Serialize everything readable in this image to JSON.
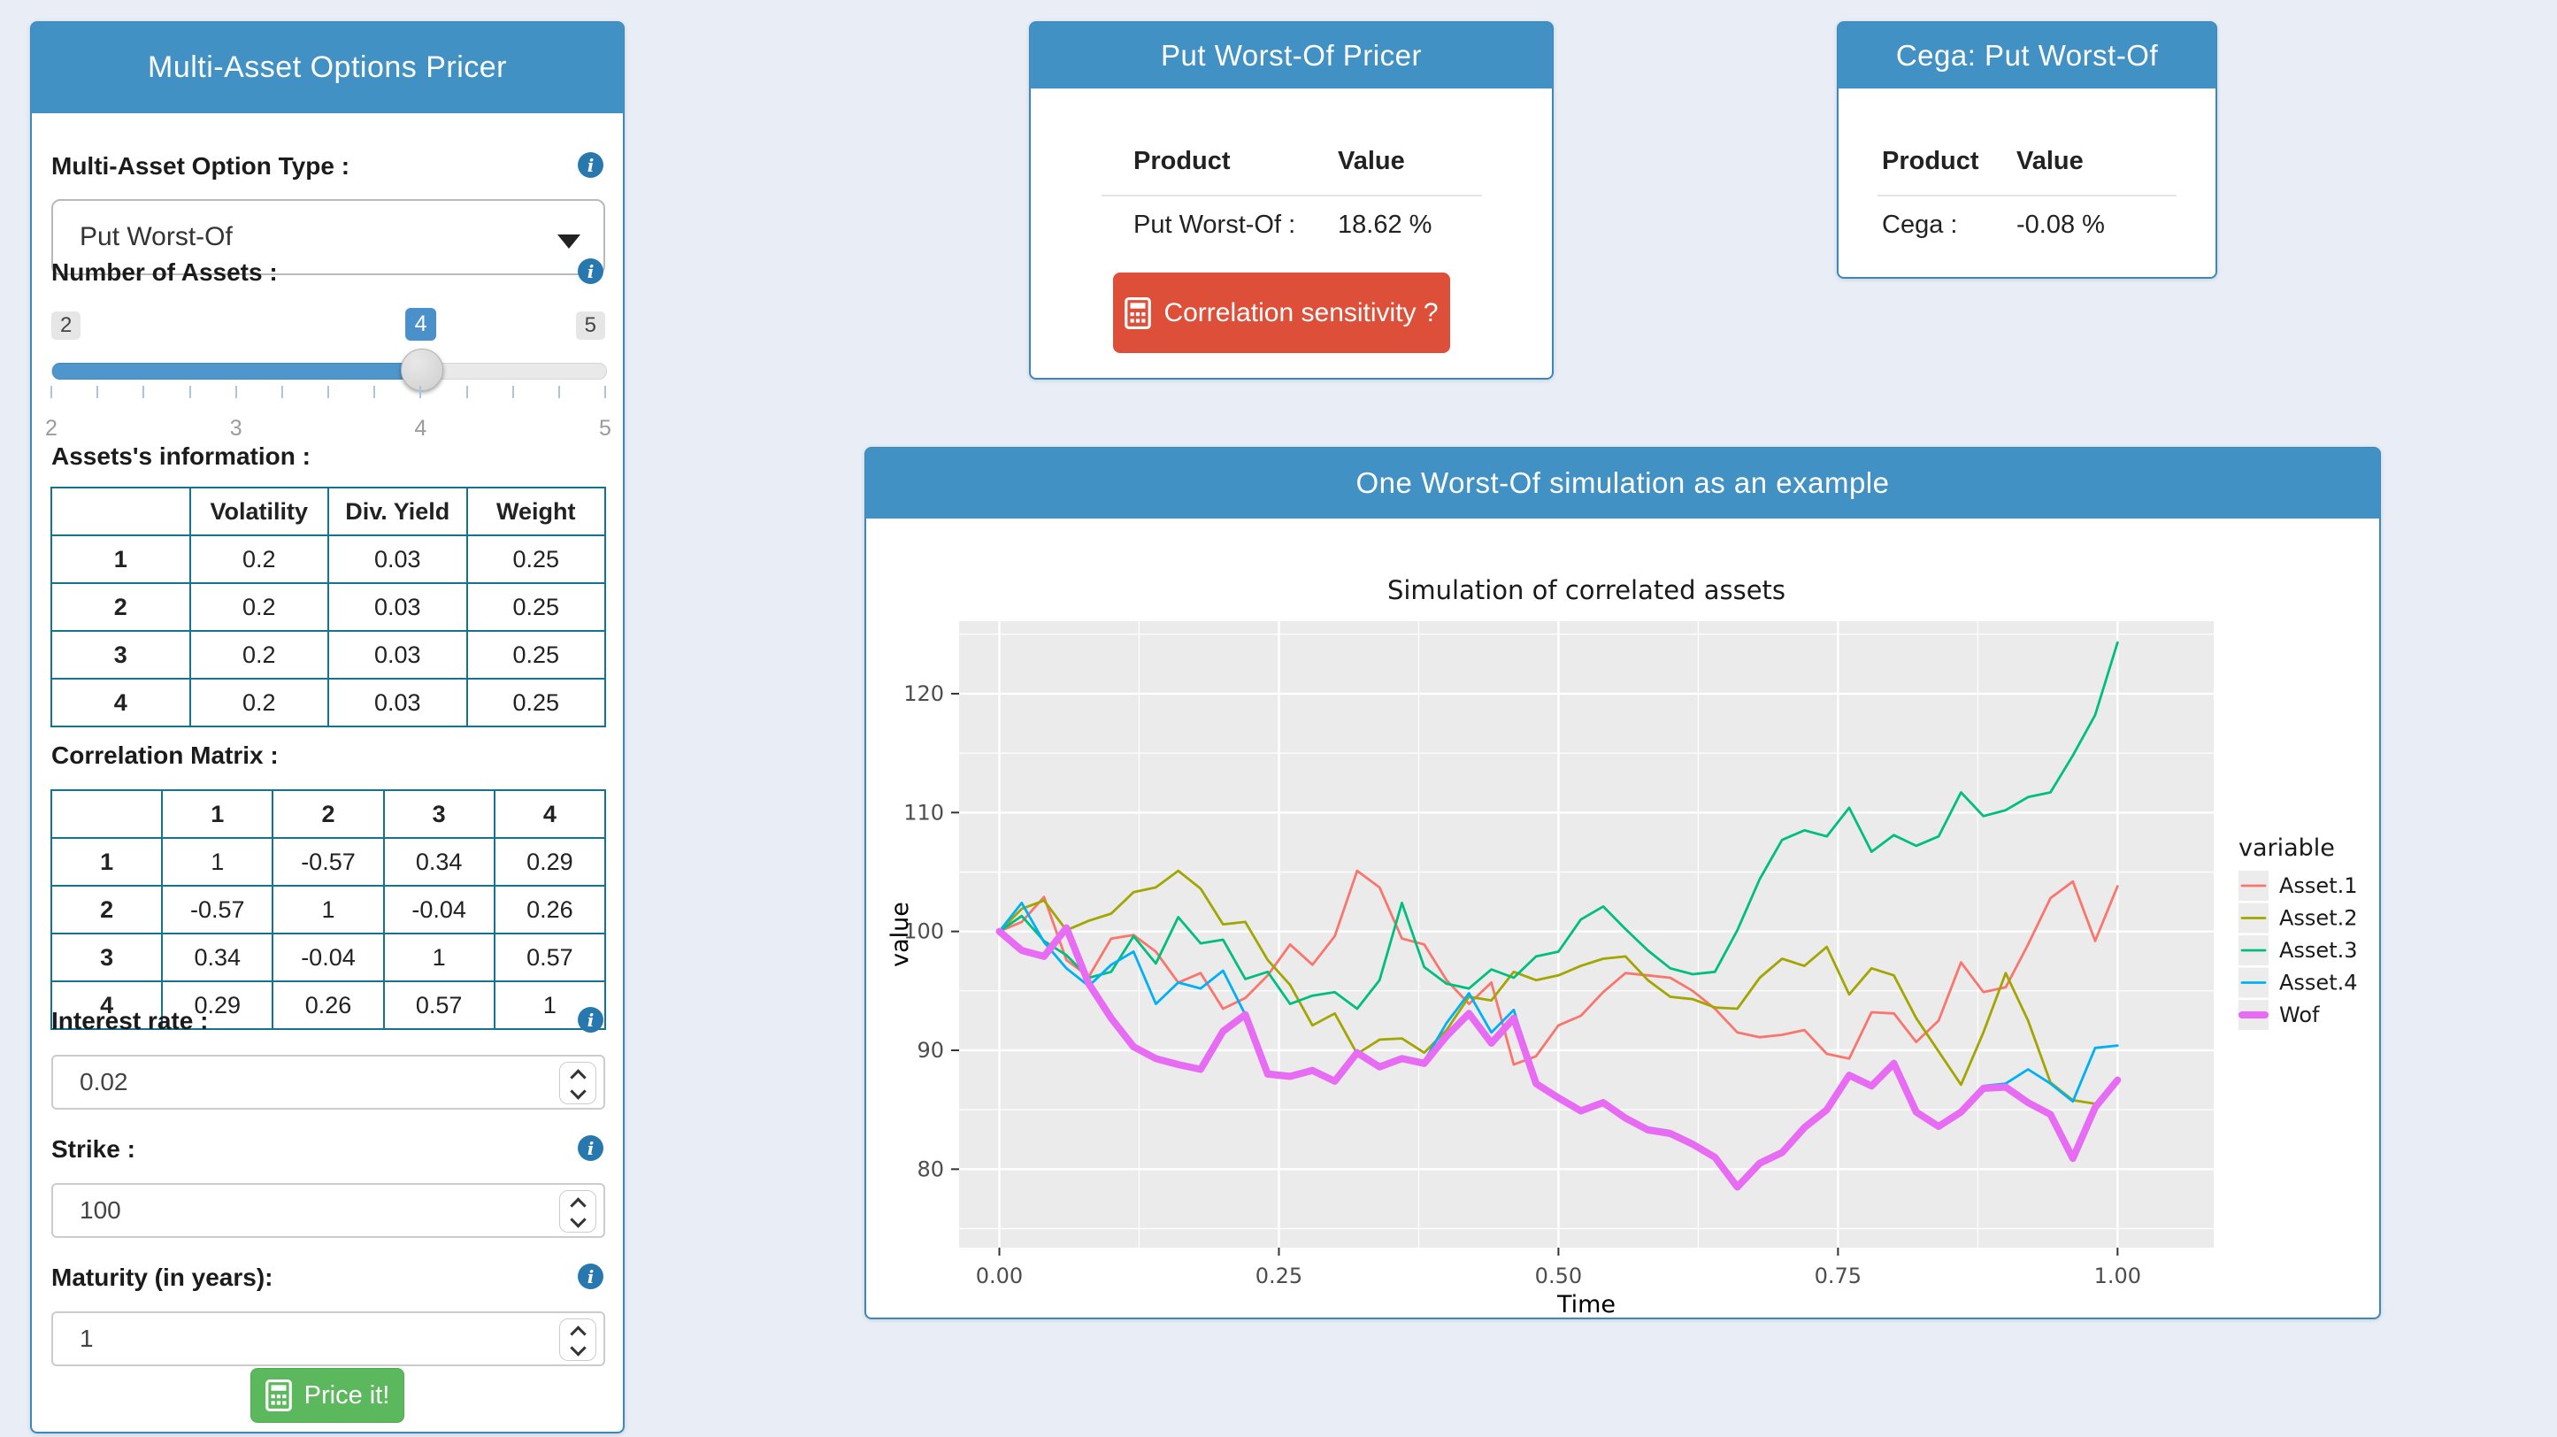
{
  "left_panel": {
    "title": "Multi-Asset Options Pricer",
    "option_type": {
      "label": "Multi-Asset Option Type :",
      "value": "Put Worst-Of"
    },
    "num_assets": {
      "label": "Number of Assets :",
      "min": "2",
      "max": "5",
      "value": "4",
      "tick_labels": [
        "2",
        "3",
        "4",
        "5"
      ]
    },
    "assets_table": {
      "label": "Assets's information :",
      "columns": [
        "",
        "Volatility",
        "Div. Yield",
        "Weight"
      ],
      "rows": [
        [
          "1",
          "0.2",
          "0.03",
          "0.25"
        ],
        [
          "2",
          "0.2",
          "0.03",
          "0.25"
        ],
        [
          "3",
          "0.2",
          "0.03",
          "0.25"
        ],
        [
          "4",
          "0.2",
          "0.03",
          "0.25"
        ]
      ]
    },
    "correlation": {
      "label": "Correlation Matrix :",
      "columns": [
        "",
        "1",
        "2",
        "3",
        "4"
      ],
      "rows": [
        [
          "1",
          "1",
          "-0.57",
          "0.34",
          "0.29"
        ],
        [
          "2",
          "-0.57",
          "1",
          "-0.04",
          "0.26"
        ],
        [
          "3",
          "0.34",
          "-0.04",
          "1",
          "0.57"
        ],
        [
          "4",
          "0.29",
          "0.26",
          "0.57",
          "1"
        ]
      ]
    },
    "interest_rate": {
      "label": "Interest rate :",
      "value": "0.02"
    },
    "strike": {
      "label": "Strike :",
      "value": "100"
    },
    "maturity": {
      "label": "Maturity (in years):",
      "value": "1"
    },
    "price_button": "Price it!"
  },
  "pricer_card": {
    "title": "Put Worst-Of Pricer",
    "columns": [
      "Product",
      "Value"
    ],
    "row": {
      "product": "Put Worst-Of :",
      "value": "18.62 %"
    },
    "button": "Correlation sensitivity ?"
  },
  "cega_card": {
    "title": "Cega: Put Worst-Of",
    "columns": [
      "Product",
      "Value"
    ],
    "row": {
      "product": "Cega :",
      "value": "-0.08 %"
    }
  },
  "chart_panel": {
    "title": "One Worst-Of simulation as an example"
  },
  "chart_data": {
    "type": "line",
    "title": "Simulation of correlated assets",
    "xlabel": "Time",
    "ylabel": "value",
    "legend_title": "variable",
    "legend_position": "right",
    "grid": true,
    "background": "#EBEBEB",
    "xlim": [
      -0.036,
      1.086
    ],
    "ylim": [
      73.4,
      126.1
    ],
    "xticks": [
      0,
      0.25,
      0.5,
      0.75,
      1.0
    ],
    "xtick_labels": [
      "0.00",
      "0.25",
      "0.50",
      "0.75",
      "1.00"
    ],
    "x_minor": [
      0.125,
      0.375,
      0.625,
      0.875
    ],
    "yticks": [
      80,
      90,
      100,
      110,
      120
    ],
    "y_minor": [
      75,
      85,
      95,
      105,
      115,
      125
    ],
    "x": [
      0,
      0.02,
      0.04,
      0.06,
      0.08,
      0.1,
      0.12,
      0.14,
      0.16,
      0.18,
      0.2,
      0.22,
      0.24,
      0.26,
      0.28,
      0.3,
      0.32,
      0.34,
      0.36,
      0.38,
      0.4,
      0.42,
      0.44,
      0.46,
      0.48,
      0.5,
      0.52,
      0.54,
      0.56,
      0.58,
      0.6,
      0.62,
      0.64,
      0.66,
      0.68,
      0.7,
      0.72,
      0.74,
      0.76,
      0.78,
      0.8,
      0.82,
      0.84,
      0.86,
      0.88,
      0.9,
      0.92,
      0.94,
      0.96,
      0.98,
      1.0
    ],
    "series": [
      {
        "name": "Asset.1",
        "color": "#F8766D",
        "width": 2.8,
        "values": [
          100,
          100.8,
          102.9,
          97.6,
          96.2,
          99.4,
          99.7,
          98.3,
          95.7,
          96.5,
          93.5,
          94.4,
          96.3,
          98.9,
          97.2,
          99.6,
          105.1,
          103.7,
          99.4,
          98.9,
          95.9,
          93.9,
          95.7,
          88.8,
          89.5,
          92.1,
          92.9,
          94.9,
          96.5,
          96.3,
          96.1,
          95.0,
          93.5,
          91.5,
          91.1,
          91.3,
          91.7,
          89.7,
          89.3,
          93.2,
          93.1,
          90.7,
          92.5,
          97.4,
          94.9,
          95.3,
          98.9,
          102.8,
          104.2,
          99.2,
          103.8
        ]
      },
      {
        "name": "Asset.2",
        "color": "#A3A500",
        "width": 2.8,
        "values": [
          100,
          101.9,
          102.6,
          100.1,
          100.9,
          101.5,
          103.3,
          103.7,
          105.1,
          103.6,
          100.6,
          100.8,
          97.6,
          95.5,
          92.1,
          93.1,
          89.7,
          90.9,
          91.0,
          89.8,
          91.7,
          94.5,
          94.2,
          96.6,
          95.9,
          96.3,
          97.1,
          97.7,
          97.9,
          95.9,
          94.5,
          94.3,
          93.6,
          93.5,
          96.1,
          97.7,
          97.1,
          98.7,
          94.7,
          96.9,
          96.3,
          92.7,
          89.9,
          87.1,
          91.5,
          96.5,
          92.5,
          87.3,
          85.8,
          85.5,
          87.2
        ]
      },
      {
        "name": "Asset.3",
        "color": "#00BF7D",
        "width": 2.8,
        "values": [
          100,
          101.3,
          99.2,
          98.0,
          96.1,
          96.6,
          99.6,
          97.3,
          101.2,
          99.0,
          99.3,
          96.0,
          96.6,
          93.9,
          94.6,
          94.9,
          93.5,
          95.9,
          102.4,
          97.0,
          95.6,
          95.2,
          96.8,
          96.1,
          97.9,
          98.3,
          101.0,
          102.1,
          100.2,
          98.4,
          96.9,
          96.4,
          96.6,
          100.1,
          104.4,
          107.7,
          108.5,
          108.0,
          110.4,
          106.7,
          108.1,
          107.2,
          108.0,
          111.7,
          109.7,
          110.2,
          111.3,
          111.7,
          114.8,
          118.2,
          124.3
        ]
      },
      {
        "name": "Asset.4",
        "color": "#00B0F6",
        "width": 2.8,
        "values": [
          100,
          102.4,
          99.1,
          96.9,
          95.4,
          97.2,
          98.3,
          93.9,
          95.7,
          95.2,
          96.7,
          93.0,
          88.2,
          88.0,
          88.5,
          87.6,
          90.0,
          88.8,
          89.5,
          89.1,
          92.3,
          94.8,
          91.5,
          93.4,
          87.4,
          86.2,
          85.1,
          85.8,
          84.5,
          83.5,
          83.2,
          82.3,
          81.2,
          78.7,
          80.7,
          81.6,
          83.7,
          85.2,
          88.1,
          87.2,
          89.1,
          85.0,
          83.8,
          85.0,
          87.0,
          87.2,
          88.4,
          87.2,
          85.7,
          90.2,
          90.4
        ]
      },
      {
        "name": "Wof",
        "color": "#E76BF3",
        "width": 8,
        "values": [
          100,
          98.4,
          97.9,
          100.3,
          95.6,
          92.7,
          90.3,
          89.3,
          88.8,
          88.4,
          91.6,
          93.0,
          88.0,
          87.8,
          88.3,
          87.4,
          89.8,
          88.6,
          89.3,
          88.9,
          91.2,
          93.1,
          90.6,
          92.7,
          87.2,
          86.0,
          84.9,
          85.6,
          84.3,
          83.3,
          83.0,
          82.1,
          81.0,
          78.5,
          80.5,
          81.4,
          83.5,
          85.0,
          87.9,
          87.0,
          88.9,
          84.8,
          83.6,
          84.8,
          86.8,
          86.9,
          85.6,
          84.6,
          80.9,
          85.2,
          87.5
        ]
      }
    ]
  }
}
